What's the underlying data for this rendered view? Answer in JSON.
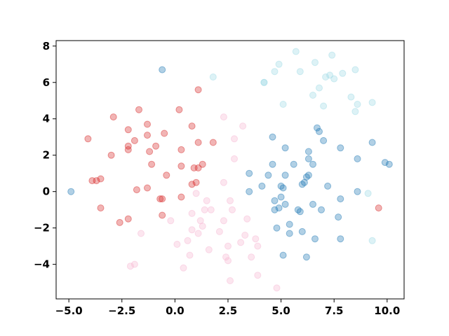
{
  "chart_data": {
    "type": "scatter",
    "title": "",
    "xlabel": "",
    "ylabel": "",
    "xlim": [
      -5.6,
      10.8
    ],
    "ylim": [
      -5.9,
      8.3
    ],
    "xticks": [
      -5.0,
      -2.5,
      0.0,
      2.5,
      5.0,
      7.5,
      10.0
    ],
    "xtick_labels": [
      "−5.0",
      "−2.5",
      "0.0",
      "2.5",
      "5.0",
      "7.5",
      "10.0"
    ],
    "yticks": [
      -4,
      -2,
      0,
      2,
      4,
      6,
      8
    ],
    "ytick_labels": [
      "−4",
      "−2",
      "0",
      "2",
      "4",
      "6",
      "8"
    ],
    "grid": false,
    "legend": "none",
    "series": [
      {
        "color": "#d62728",
        "points": [
          [
            -4.1,
            2.9
          ],
          [
            -3.9,
            0.6
          ],
          [
            -3.7,
            0.6
          ],
          [
            -3.5,
            0.7
          ],
          [
            -3.5,
            -0.9
          ],
          [
            -2.9,
            4.1
          ],
          [
            -3.0,
            2.0
          ],
          [
            -2.6,
            -1.7
          ],
          [
            -2.2,
            3.4
          ],
          [
            -2.2,
            2.5
          ],
          [
            -2.2,
            2.3
          ],
          [
            -1.9,
            2.8
          ],
          [
            -1.7,
            4.5
          ],
          [
            -1.8,
            0.1
          ],
          [
            -1.3,
            3.7
          ],
          [
            -1.3,
            3.1
          ],
          [
            -1.2,
            2.2
          ],
          [
            -1.1,
            1.5
          ],
          [
            -1.3,
            0.2
          ],
          [
            -2.2,
            -1.5
          ],
          [
            -0.9,
            2.5
          ],
          [
            -0.5,
            3.2
          ],
          [
            -0.4,
            0.9
          ],
          [
            -0.7,
            -0.4
          ],
          [
            -0.6,
            -1.3
          ],
          [
            0.2,
            4.5
          ],
          [
            0.3,
            2.3
          ],
          [
            0.3,
            1.4
          ],
          [
            0.8,
            3.6
          ],
          [
            0.9,
            1.3
          ],
          [
            1.1,
            1.3
          ],
          [
            1.3,
            1.5
          ],
          [
            1.0,
            0.5
          ],
          [
            0.8,
            0.4
          ],
          [
            0.3,
            -0.3
          ],
          [
            1.1,
            2.7
          ],
          [
            1.8,
            2.7
          ],
          [
            1.1,
            5.6
          ],
          [
            9.6,
            -0.9
          ],
          [
            -0.6,
            -0.4
          ]
        ]
      },
      {
        "color": "#f7b6d2",
        "points": [
          [
            2.3,
            4.1
          ],
          [
            3.2,
            3.6
          ],
          [
            2.8,
            2.9
          ],
          [
            2.8,
            1.8
          ],
          [
            2.3,
            0.5
          ],
          [
            1.0,
            -0.1
          ],
          [
            -1.6,
            -2.3
          ],
          [
            -0.2,
            -1.6
          ],
          [
            0.8,
            -1.2
          ],
          [
            1.2,
            -1.6
          ],
          [
            1.5,
            -0.5
          ],
          [
            1.4,
            -1.0
          ],
          [
            1.7,
            -1.0
          ],
          [
            2.3,
            -1.6
          ],
          [
            2.7,
            -1.0
          ],
          [
            2.6,
            -0.5
          ],
          [
            2.1,
            -2.2
          ],
          [
            3.4,
            -1.5
          ],
          [
            3.3,
            -2.4
          ],
          [
            3.1,
            -2.8
          ],
          [
            3.8,
            -2.6
          ],
          [
            3.9,
            -3.0
          ],
          [
            2.5,
            -3.0
          ],
          [
            0.1,
            -2.9
          ],
          [
            0.6,
            -2.7
          ],
          [
            0.8,
            -2.1
          ],
          [
            1.1,
            -2.3
          ],
          [
            1.3,
            -1.9
          ],
          [
            1.6,
            -3.2
          ],
          [
            0.7,
            -3.5
          ],
          [
            0.4,
            -4.2
          ],
          [
            -1.9,
            -4.0
          ],
          [
            -2.1,
            -4.1
          ],
          [
            2.4,
            -3.6
          ],
          [
            2.5,
            -3.8
          ],
          [
            3.6,
            -3.6
          ],
          [
            2.6,
            -4.9
          ],
          [
            3.9,
            -4.6
          ],
          [
            4.8,
            -5.3
          ]
        ]
      },
      {
        "color": "#1f77b4",
        "points": [
          [
            -0.6,
            6.7
          ],
          [
            -4.9,
            0.0
          ],
          [
            4.6,
            3.0
          ],
          [
            5.2,
            2.4
          ],
          [
            3.5,
            1.0
          ],
          [
            4.1,
            0.3
          ],
          [
            4.4,
            0.9
          ],
          [
            4.6,
            1.5
          ],
          [
            4.7,
            -0.5
          ],
          [
            4.9,
            -0.9
          ],
          [
            4.7,
            -1.0
          ],
          [
            5.1,
            0.2
          ],
          [
            5.0,
            0.3
          ],
          [
            5.2,
            0.9
          ],
          [
            5.0,
            -0.3
          ],
          [
            5.2,
            -0.7
          ],
          [
            4.8,
            -2.0
          ],
          [
            5.4,
            -1.8
          ],
          [
            5.1,
            -3.5
          ],
          [
            5.4,
            -2.3
          ],
          [
            3.5,
            0.0
          ],
          [
            5.6,
            1.5
          ],
          [
            5.8,
            -1.0
          ],
          [
            5.9,
            -1.1
          ],
          [
            6.0,
            0.4
          ],
          [
            6.1,
            0.5
          ],
          [
            6.2,
            0.8
          ],
          [
            6.3,
            0.9
          ],
          [
            6.3,
            2.2
          ],
          [
            6.3,
            1.8
          ],
          [
            6.5,
            1.5
          ],
          [
            6.5,
            -0.7
          ],
          [
            6.7,
            3.5
          ],
          [
            6.8,
            3.3
          ],
          [
            7.0,
            2.8
          ],
          [
            6.9,
            -1.0
          ],
          [
            6.6,
            -2.6
          ],
          [
            6.2,
            -3.6
          ],
          [
            6.0,
            -2.2
          ],
          [
            7.2,
            0.3
          ],
          [
            7.8,
            2.4
          ],
          [
            7.8,
            -0.4
          ],
          [
            7.7,
            -1.4
          ],
          [
            7.8,
            -2.6
          ],
          [
            8.6,
            1.8
          ],
          [
            8.6,
            0.0
          ],
          [
            9.3,
            2.7
          ],
          [
            9.9,
            1.6
          ],
          [
            10.1,
            1.5
          ]
        ]
      },
      {
        "color": "#9edae5",
        "points": [
          [
            1.8,
            6.3
          ],
          [
            4.2,
            6.0
          ],
          [
            4.7,
            6.6
          ],
          [
            4.9,
            7.0
          ],
          [
            5.1,
            4.8
          ],
          [
            5.7,
            7.7
          ],
          [
            5.9,
            6.6
          ],
          [
            6.5,
            5.3
          ],
          [
            6.6,
            7.1
          ],
          [
            6.8,
            5.7
          ],
          [
            7.1,
            6.3
          ],
          [
            7.3,
            6.4
          ],
          [
            7.4,
            7.5
          ],
          [
            7.5,
            6.2
          ],
          [
            7.9,
            6.5
          ],
          [
            7.0,
            4.7
          ],
          [
            8.3,
            5.2
          ],
          [
            8.5,
            6.7
          ],
          [
            8.6,
            4.8
          ],
          [
            8.5,
            4.4
          ],
          [
            9.3,
            4.9
          ],
          [
            9.1,
            -0.1
          ],
          [
            9.3,
            -2.7
          ],
          [
            4.2,
            6.0
          ]
        ]
      }
    ]
  }
}
